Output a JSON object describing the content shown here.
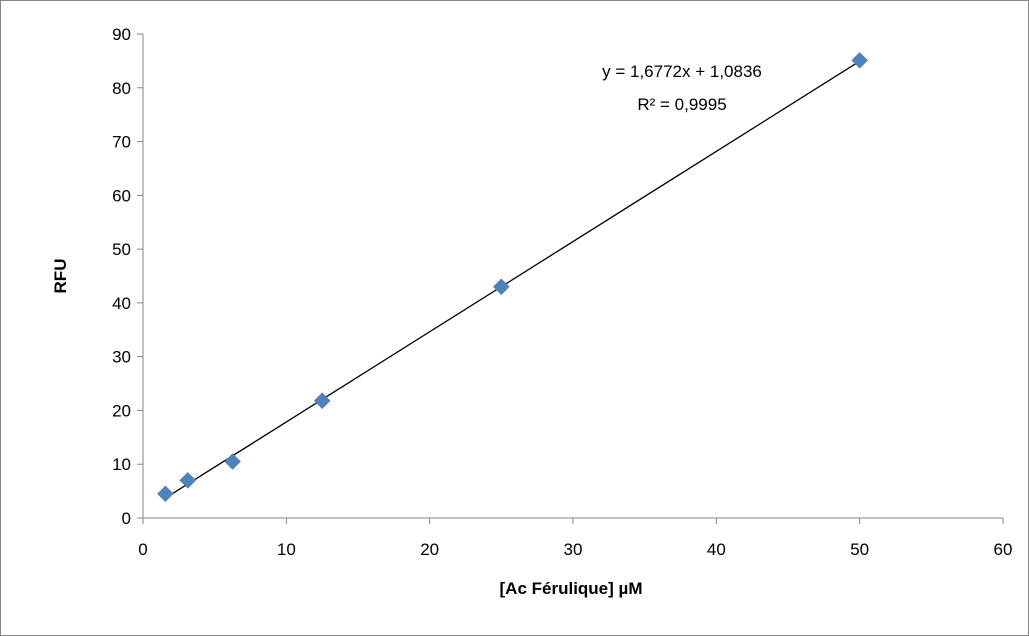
{
  "chart_data": {
    "type": "scatter",
    "xlabel": "[Ac Férulique] µM",
    "ylabel": "RFU",
    "xlim": [
      0,
      60
    ],
    "ylim": [
      0,
      90
    ],
    "x_ticks": [
      "0",
      "10",
      "20",
      "30",
      "40",
      "50",
      "60"
    ],
    "y_ticks": [
      "0",
      "10",
      "20",
      "30",
      "40",
      "50",
      "60",
      "70",
      "80",
      "90"
    ],
    "grid": false,
    "legend": "none",
    "marker_color": "#4F81BD",
    "series": [
      {
        "x": [
          1.5625,
          3.125,
          6.25,
          12.5,
          25,
          50
        ],
        "y": [
          4.5,
          7.0,
          10.5,
          21.8,
          43.0,
          85.1
        ]
      }
    ],
    "trendline": {
      "slope": 1.6772,
      "intercept": 1.0836,
      "x_range": [
        1.5625,
        50
      ],
      "color": "#000000",
      "equation_label": "y = 1,6772x + 1,0836",
      "r2_label": "R² = 0,9995"
    }
  }
}
